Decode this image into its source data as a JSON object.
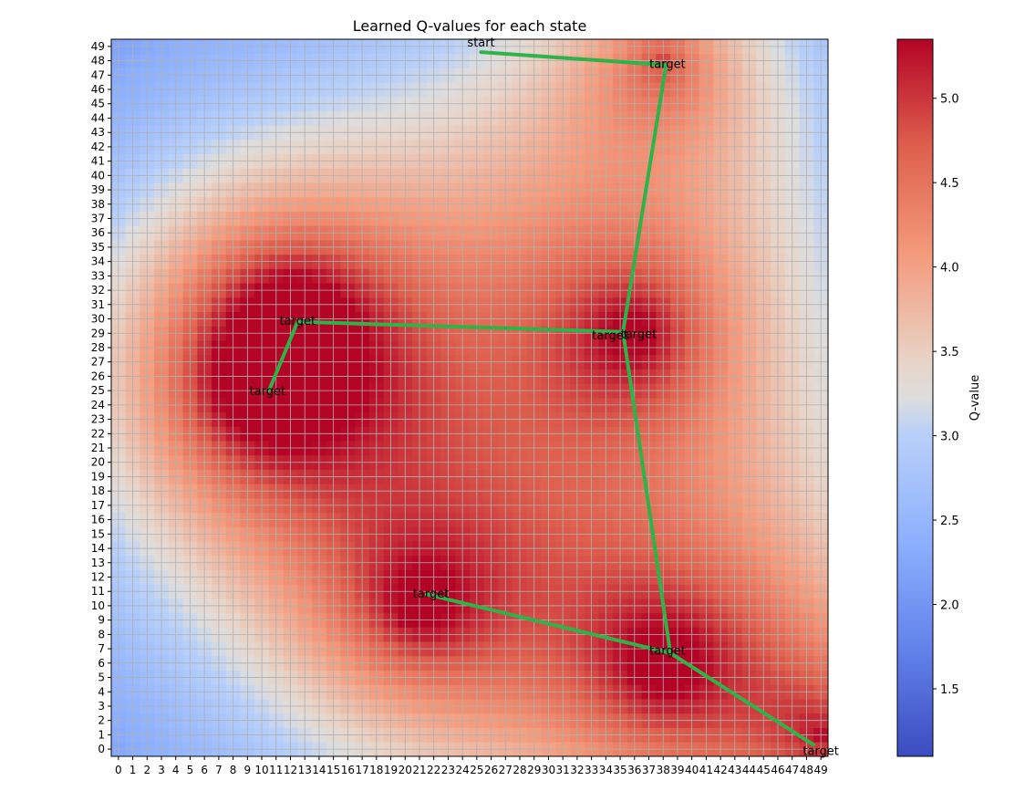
{
  "chart_data": {
    "type": "heatmap",
    "title": "Learned Q-values for each state",
    "xlabel": "",
    "ylabel": "",
    "grid_size": 50,
    "grid": true,
    "x_ticks": [
      0,
      1,
      2,
      3,
      4,
      5,
      6,
      7,
      8,
      9,
      10,
      11,
      12,
      13,
      14,
      15,
      16,
      17,
      18,
      19,
      20,
      21,
      22,
      23,
      24,
      25,
      26,
      27,
      28,
      29,
      30,
      31,
      32,
      33,
      34,
      35,
      36,
      37,
      38,
      39,
      40,
      41,
      42,
      43,
      44,
      45,
      46,
      47,
      48,
      49
    ],
    "y_ticks": [
      0,
      1,
      2,
      3,
      4,
      5,
      6,
      7,
      8,
      9,
      10,
      11,
      12,
      13,
      14,
      15,
      16,
      17,
      18,
      19,
      20,
      21,
      22,
      23,
      24,
      25,
      26,
      27,
      28,
      29,
      30,
      31,
      32,
      33,
      34,
      35,
      36,
      37,
      38,
      39,
      40,
      41,
      42,
      43,
      44,
      45,
      46,
      47,
      48,
      49
    ],
    "colormap": "coolwarm",
    "colorbar": {
      "label": "Q-value",
      "range": [
        1.1,
        5.35
      ],
      "ticks": [
        1.5,
        2.0,
        2.5,
        3.0,
        3.5,
        4.0,
        4.5,
        5.0
      ],
      "tick_labels": [
        "1.5",
        "2.0",
        "2.5",
        "3.0",
        "3.5",
        "4.0",
        "4.5",
        "5.0"
      ]
    },
    "q_value_peaks": [
      {
        "x": 38,
        "y": 48,
        "q": 5.3
      },
      {
        "x": 12,
        "y": 30,
        "q": 5.3
      },
      {
        "x": 10,
        "y": 25,
        "q": 5.3
      },
      {
        "x": 36,
        "y": 29,
        "q": 5.35
      },
      {
        "x": 21,
        "y": 10,
        "q": 5.3
      },
      {
        "x": 38,
        "y": 6,
        "q": 5.3
      },
      {
        "x": 49,
        "y": 1,
        "q": 5.3
      }
    ],
    "q_value_base": 1.15,
    "path": {
      "color": "#2db34a",
      "points": [
        {
          "x": 25.3,
          "y": 48.6
        },
        {
          "x": 38.2,
          "y": 47.7
        },
        {
          "x": 35.2,
          "y": 29.1
        },
        {
          "x": 12.5,
          "y": 29.8
        },
        {
          "x": 10.5,
          "y": 25.0
        },
        {
          "x": 12.5,
          "y": 29.8
        },
        {
          "x": 35.2,
          "y": 29.1
        },
        {
          "x": 38.5,
          "y": 6.7
        },
        {
          "x": 21.5,
          "y": 10.8
        },
        {
          "x": 38.5,
          "y": 6.7
        },
        {
          "x": 48.5,
          "y": 0.3
        }
      ]
    },
    "annotations": [
      {
        "text": "start",
        "x": 25.3,
        "y": 49.3
      },
      {
        "text": "target",
        "x": 38.3,
        "y": 47.8
      },
      {
        "text": "target",
        "x": 12.5,
        "y": 29.9
      },
      {
        "text": "target",
        "x": 10.4,
        "y": 25.0
      },
      {
        "text": "target",
        "x": 34.3,
        "y": 28.9
      },
      {
        "text": "target",
        "x": 36.3,
        "y": 29.0
      },
      {
        "text": "target",
        "x": 21.8,
        "y": 10.9
      },
      {
        "text": "target",
        "x": 38.3,
        "y": 6.9
      },
      {
        "text": "target",
        "x": 49.0,
        "y": -0.1
      }
    ]
  }
}
